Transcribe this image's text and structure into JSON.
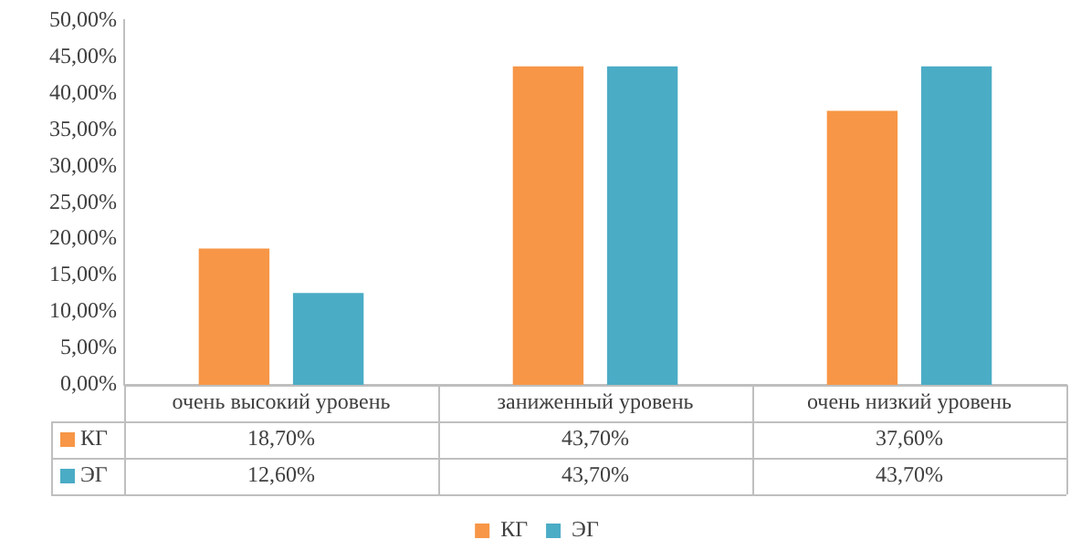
{
  "chart_data": {
    "type": "bar",
    "categories": [
      "очень высокий уровень",
      "заниженный уровень",
      "очень низкий уровень"
    ],
    "series": [
      {
        "name": "КГ",
        "color": "#f79646",
        "values": [
          18.7,
          43.7,
          37.6
        ],
        "value_labels": [
          "18,70%",
          "43,70%",
          "37,60%"
        ]
      },
      {
        "name": "ЭГ",
        "color": "#4bacc6",
        "values": [
          12.6,
          43.7,
          43.7
        ],
        "value_labels": [
          "12,60%",
          "43,70%",
          "43,70%"
        ]
      }
    ],
    "ylim": [
      0,
      50
    ],
    "yticks": [
      {
        "value": 0,
        "label": "0,00%"
      },
      {
        "value": 5,
        "label": "5,00%"
      },
      {
        "value": 10,
        "label": "10,00%"
      },
      {
        "value": 15,
        "label": "15,00%"
      },
      {
        "value": 20,
        "label": "20,00%"
      },
      {
        "value": 25,
        "label": "25,00%"
      },
      {
        "value": 30,
        "label": "30,00%"
      },
      {
        "value": 35,
        "label": "35,00%"
      },
      {
        "value": 40,
        "label": "40,00%"
      },
      {
        "value": 45,
        "label": "45,00%"
      },
      {
        "value": 50,
        "label": "50,00%"
      }
    ],
    "grid": false,
    "legend": "bottom"
  }
}
